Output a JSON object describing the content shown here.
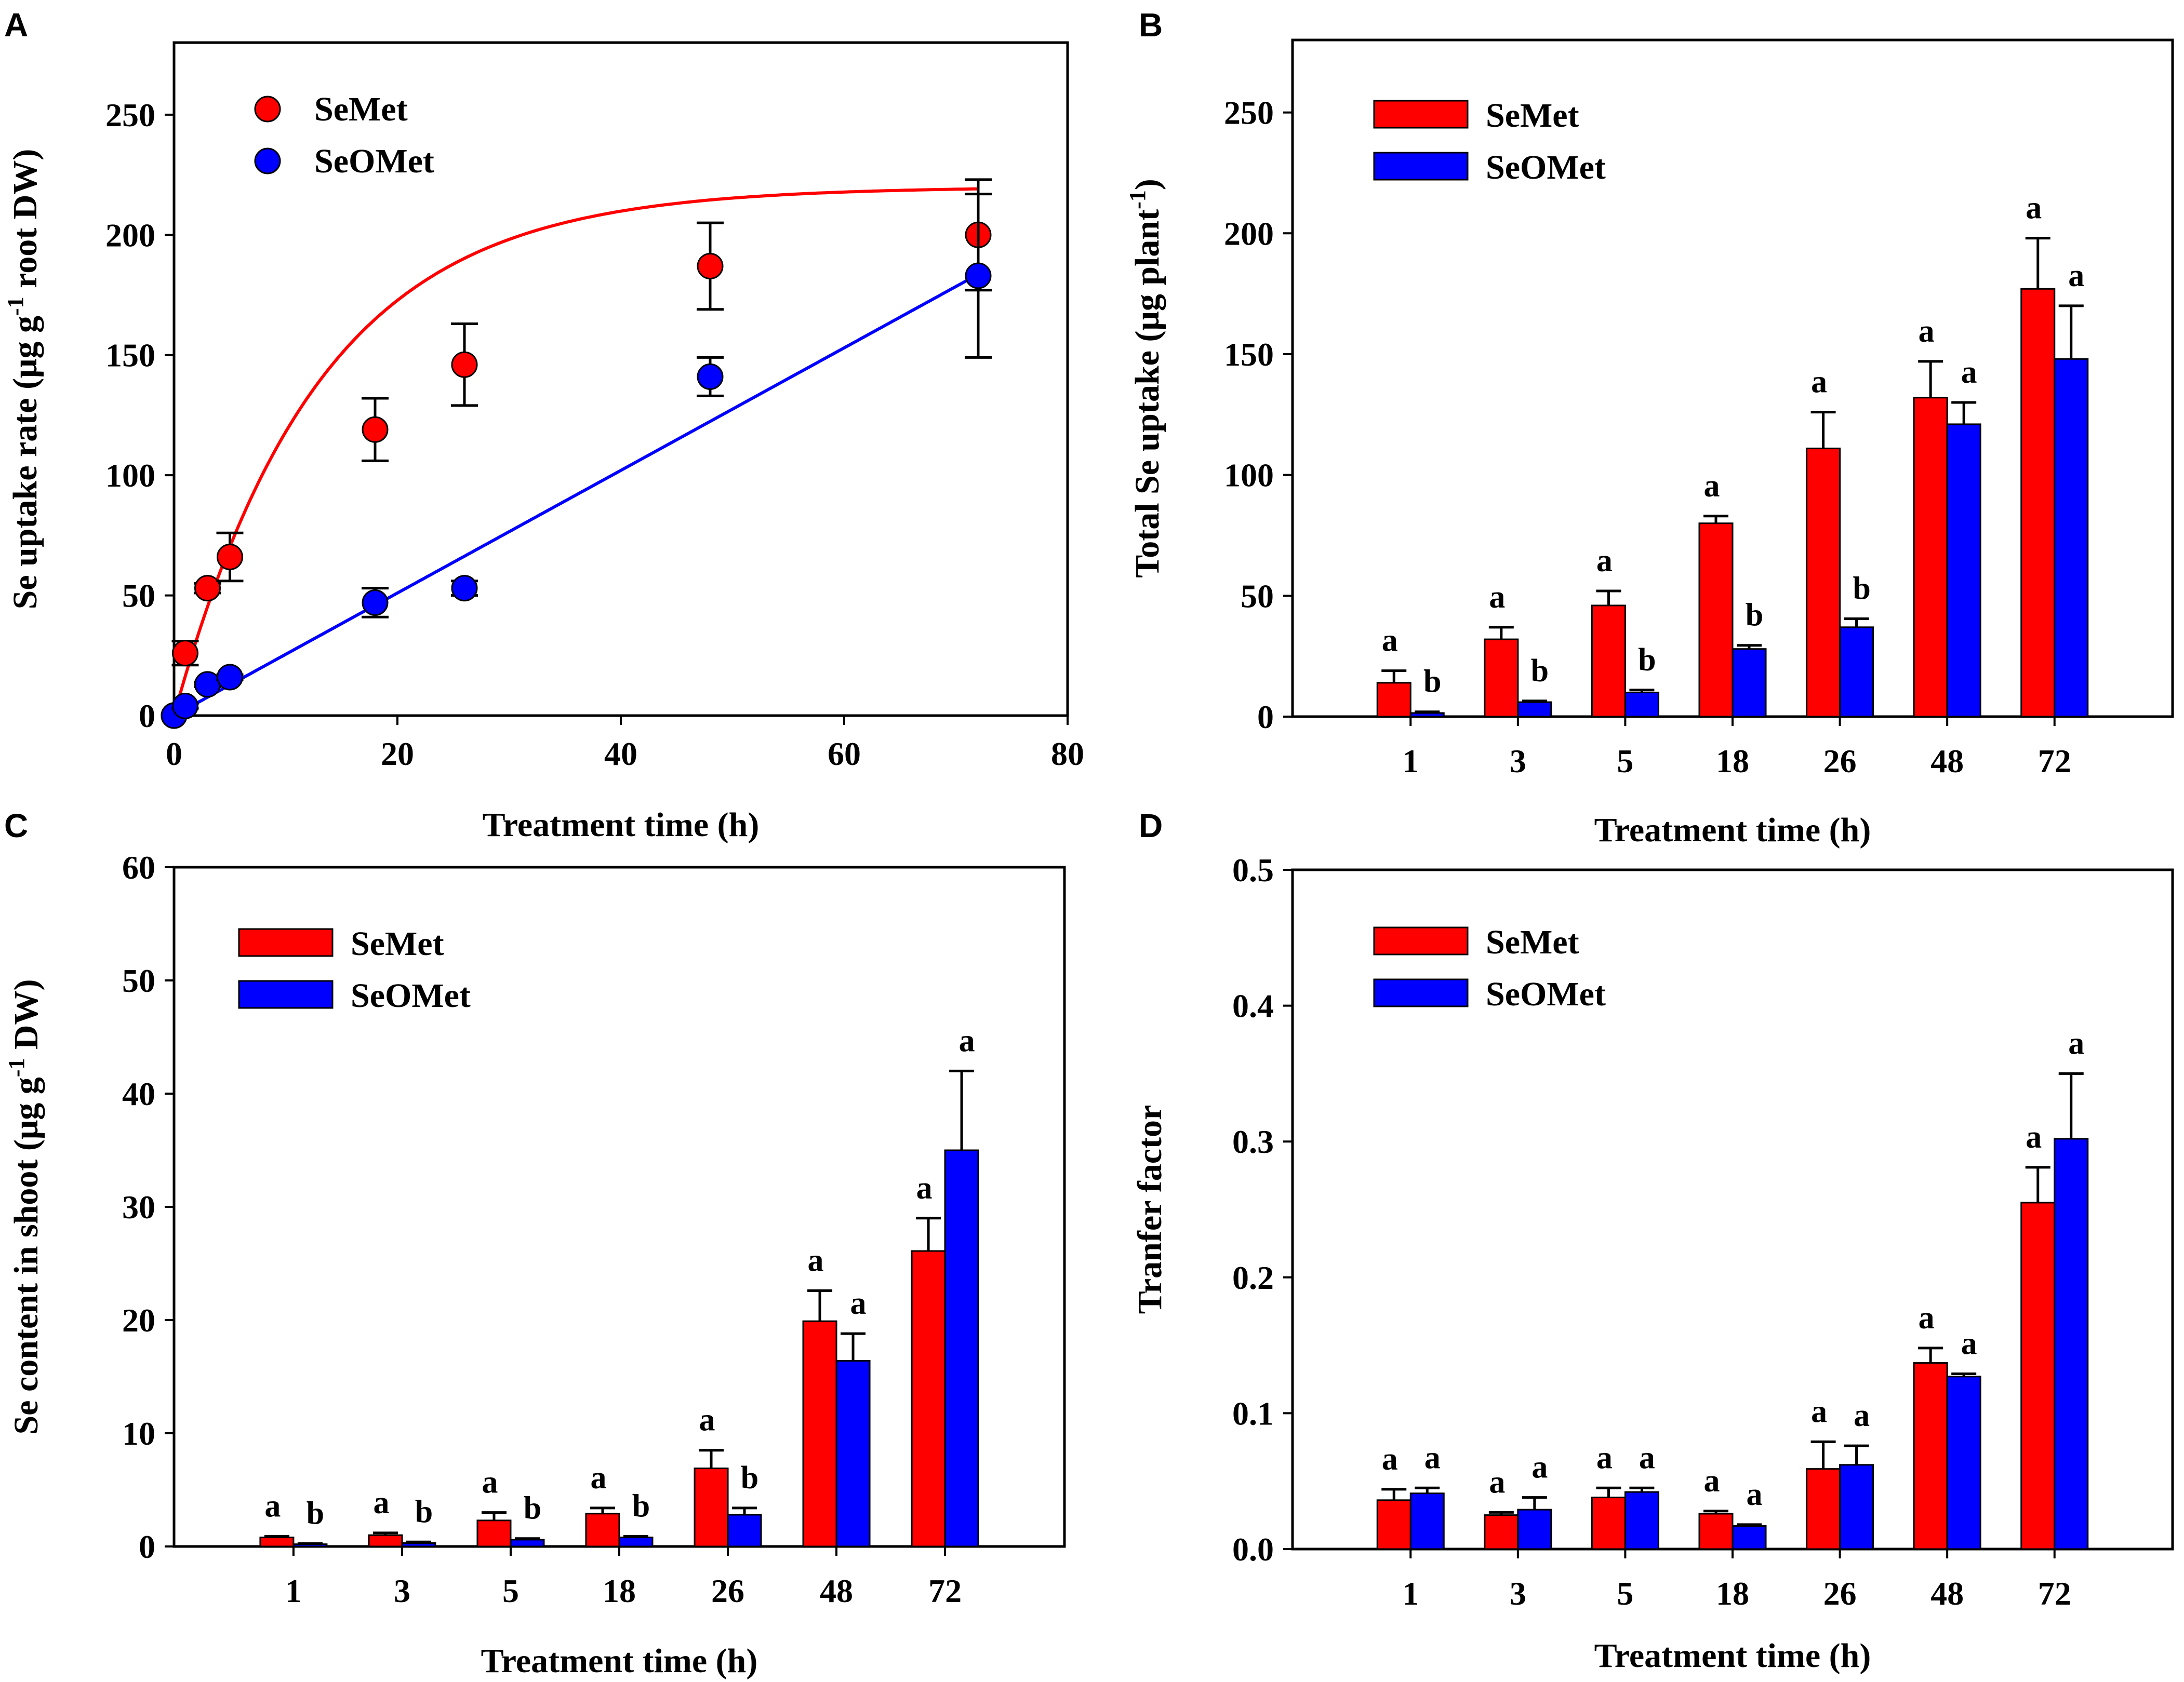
{
  "colors": {
    "semet": "#ff0000",
    "seomet": "#0000ff",
    "axis": "#000000"
  },
  "chart_data": [
    {
      "panel": "A",
      "type": "scatter",
      "xlabel": "Treatment time (h)",
      "ylabel": "Se uptake rate (μg g⁻¹ root DW)",
      "xlim": [
        0,
        80
      ],
      "ylim": [
        0,
        280
      ],
      "xticks": [
        "0",
        "20",
        "40",
        "60",
        "80"
      ],
      "yticks": [
        "0",
        "50",
        "100",
        "150",
        "200",
        "250"
      ],
      "legend": [
        "SeMet",
        "SeOMet"
      ],
      "legend_position": "top-left",
      "series": [
        {
          "name": "SeMet",
          "x": [
            0,
            1,
            3,
            5,
            18,
            26,
            48,
            72
          ],
          "values": [
            0,
            26,
            53,
            66,
            119,
            146,
            187,
            200
          ],
          "err": [
            0,
            5,
            2,
            10,
            13,
            17,
            18,
            23
          ],
          "fit": "saturating",
          "fit_params": {
            "ymax": 220,
            "tau": 13
          }
        },
        {
          "name": "SeOMet",
          "x": [
            0,
            1,
            3,
            5,
            18,
            26,
            48,
            72
          ],
          "values": [
            0,
            4,
            13,
            16,
            47,
            53,
            141,
            183
          ],
          "err": [
            0,
            1,
            1,
            1,
            6,
            3,
            8,
            34
          ],
          "fit": "linear",
          "fit_params": {
            "slope": 2.55,
            "intercept": 0
          }
        }
      ]
    },
    {
      "panel": "B",
      "type": "bar",
      "xlabel": "Treatment time (h)",
      "ylabel": "Total Se uptake (μg plant⁻¹)",
      "ylim": [
        0,
        280
      ],
      "yticks": [
        "0",
        "50",
        "100",
        "150",
        "200",
        "250"
      ],
      "categories": [
        "1",
        "3",
        "5",
        "18",
        "26",
        "48",
        "72"
      ],
      "legend": [
        "SeMet",
        "SeOMet"
      ],
      "legend_position": "top-left",
      "series": [
        {
          "name": "SeMet",
          "values": [
            14,
            32,
            46,
            80,
            111,
            132,
            177
          ],
          "err": [
            5,
            5,
            6,
            3,
            15,
            15,
            21
          ],
          "sig": [
            "a",
            "a",
            "a",
            "a",
            "a",
            "a",
            "a"
          ]
        },
        {
          "name": "SeOMet",
          "values": [
            1.5,
            6,
            10,
            28,
            37,
            121,
            148
          ],
          "err": [
            0.5,
            0.5,
            1,
            1.5,
            3.5,
            9,
            22
          ],
          "sig": [
            "b",
            "b",
            "b",
            "b",
            "b",
            "a",
            "a"
          ]
        }
      ]
    },
    {
      "panel": "C",
      "type": "bar",
      "xlabel": "Treatment time (h)",
      "ylabel": "Se content in shoot (μg g⁻¹ DW)",
      "ylim": [
        0,
        60
      ],
      "yticks": [
        "0",
        "10",
        "20",
        "30",
        "40",
        "50",
        "60"
      ],
      "categories": [
        "1",
        "3",
        "5",
        "18",
        "26",
        "48",
        "72"
      ],
      "legend": [
        "SeMet",
        "SeOMet"
      ],
      "legend_position": "top-left",
      "series": [
        {
          "name": "SeMet",
          "values": [
            0.8,
            1.0,
            2.3,
            2.9,
            6.9,
            19.9,
            26.1
          ],
          "err": [
            0.1,
            0.2,
            0.7,
            0.5,
            1.6,
            2.7,
            2.9
          ],
          "sig": [
            "a",
            "a",
            "a",
            "a",
            "a",
            "a",
            "a"
          ]
        },
        {
          "name": "SeOMet",
          "values": [
            0.2,
            0.3,
            0.6,
            0.8,
            2.8,
            16.4,
            35.0
          ],
          "err": [
            0.05,
            0.1,
            0.1,
            0.1,
            0.6,
            2.4,
            7.0
          ],
          "sig": [
            "b",
            "b",
            "b",
            "b",
            "b",
            "a",
            "a"
          ]
        }
      ]
    },
    {
      "panel": "D",
      "type": "bar",
      "xlabel": "Treatment time (h)",
      "ylabel": "Tranfer factor",
      "ylim": [
        0,
        0.5
      ],
      "yticks": [
        "0.0",
        "0.1",
        "0.2",
        "0.3",
        "0.4",
        "0.5"
      ],
      "categories": [
        "1",
        "3",
        "5",
        "18",
        "26",
        "48",
        "72"
      ],
      "legend": [
        "SeMet",
        "SeOMet"
      ],
      "legend_position": "top-left",
      "series": [
        {
          "name": "SeMet",
          "values": [
            0.036,
            0.025,
            0.038,
            0.026,
            0.059,
            0.137,
            0.255
          ],
          "err": [
            0.008,
            0.002,
            0.007,
            0.002,
            0.02,
            0.011,
            0.026
          ],
          "sig": [
            "a",
            "a",
            "a",
            "a",
            "a",
            "a",
            "a"
          ]
        },
        {
          "name": "SeOMet",
          "values": [
            0.041,
            0.029,
            0.042,
            0.017,
            0.062,
            0.127,
            0.302
          ],
          "err": [
            0.004,
            0.009,
            0.003,
            0.001,
            0.014,
            0.002,
            0.048
          ],
          "sig": [
            "a",
            "a",
            "a",
            "a",
            "a",
            "a",
            "a"
          ]
        }
      ]
    }
  ]
}
